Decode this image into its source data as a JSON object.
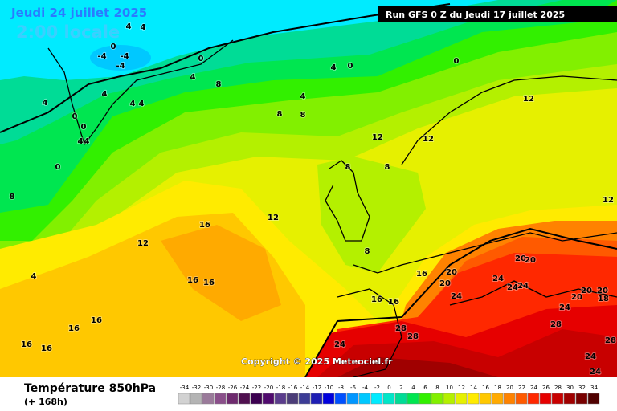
{
  "header": {
    "date": "Jeudi 24 juillet 2025",
    "time": "2:00 locale",
    "run": "Run GFS 0 Z du Jeudi 17 juillet 2025"
  },
  "copyright": "Copyright © 2025 Meteociel.fr",
  "footer": {
    "title": "Température 850hPa",
    "lead": "(+ 168h)"
  },
  "legend": {
    "values": [
      -34,
      -32,
      -30,
      -28,
      -26,
      -24,
      -22,
      -20,
      -18,
      -16,
      -14,
      -12,
      -10,
      -8,
      -6,
      -4,
      -2,
      0,
      2,
      4,
      6,
      8,
      10,
      12,
      14,
      16,
      18,
      20,
      22,
      24,
      26,
      28,
      30,
      32,
      34
    ],
    "colors": [
      "#d2d2d2",
      "#b4b4b4",
      "#9a7a9a",
      "#8a4f8a",
      "#6e2a6e",
      "#501050",
      "#3c0050",
      "#500a6e",
      "#5a3c8c",
      "#4b3c78",
      "#3c3c96",
      "#1e1eb4",
      "#0000dc",
      "#0050ff",
      "#0096ff",
      "#00c8ff",
      "#00ebff",
      "#00e6c8",
      "#00dc96",
      "#00e650",
      "#32f000",
      "#82f000",
      "#b4f000",
      "#e6f000",
      "#ffeb00",
      "#ffc800",
      "#ffaa00",
      "#ff8200",
      "#ff5a00",
      "#ff2800",
      "#e60000",
      "#c80000",
      "#a00000",
      "#780000",
      "#500000"
    ]
  },
  "contour_labels": [
    4,
    4,
    0,
    -4,
    -4,
    -4,
    0,
    4,
    8,
    4,
    0,
    0,
    4,
    4,
    4,
    4,
    4,
    8,
    8,
    0,
    0,
    4,
    4,
    0,
    8,
    12,
    12,
    12,
    8,
    8,
    12,
    12,
    16,
    12,
    4,
    16,
    16,
    8,
    16,
    20,
    20,
    24,
    24,
    24,
    20,
    20,
    24,
    20,
    20,
    20,
    18,
    16,
    16,
    24,
    28,
    28,
    28,
    16,
    16,
    16,
    16,
    24,
    28,
    24,
    24
  ]
}
